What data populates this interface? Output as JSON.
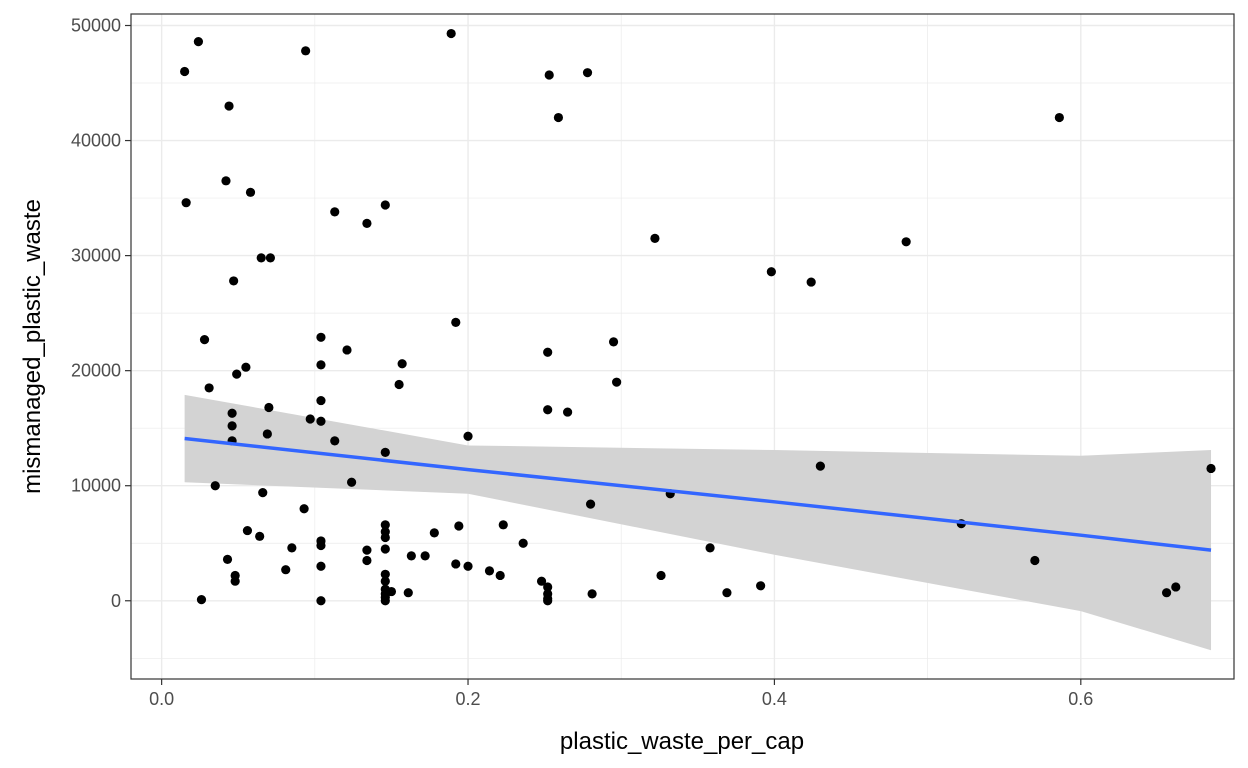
{
  "chart_data": {
    "type": "scatter",
    "title": "",
    "xlabel": "plastic_waste_per_cap",
    "ylabel": "mismanaged_plastic_waste",
    "xlim": [
      -0.02,
      0.7
    ],
    "ylim": [
      -6800,
      51000
    ],
    "x_ticks": [
      0.0,
      0.2,
      0.4,
      0.6
    ],
    "x_tick_labels": [
      "0.0",
      "0.2",
      "0.4",
      "0.6"
    ],
    "y_ticks": [
      0,
      10000,
      20000,
      30000,
      40000,
      50000
    ],
    "y_tick_labels": [
      "0",
      "10000",
      "20000",
      "30000",
      "40000",
      "50000"
    ],
    "grid": true,
    "theme": "bw",
    "colors": {
      "points": "#000000",
      "fit_line": "#3366ff",
      "ribbon": "#d3d3d3",
      "grid": "#ebebeb",
      "panel_border": "#333333"
    },
    "points": [
      {
        "x": 0.015,
        "y": 46000
      },
      {
        "x": 0.024,
        "y": 48600
      },
      {
        "x": 0.044,
        "y": 43000
      },
      {
        "x": 0.094,
        "y": 47800
      },
      {
        "x": 0.189,
        "y": 49300
      },
      {
        "x": 0.253,
        "y": 45700
      },
      {
        "x": 0.278,
        "y": 45900
      },
      {
        "x": 0.259,
        "y": 42000
      },
      {
        "x": 0.586,
        "y": 42000
      },
      {
        "x": 0.016,
        "y": 34600
      },
      {
        "x": 0.042,
        "y": 36500
      },
      {
        "x": 0.058,
        "y": 35500
      },
      {
        "x": 0.113,
        "y": 33800
      },
      {
        "x": 0.134,
        "y": 32800
      },
      {
        "x": 0.146,
        "y": 34400
      },
      {
        "x": 0.322,
        "y": 31500
      },
      {
        "x": 0.486,
        "y": 31200
      },
      {
        "x": 0.065,
        "y": 29800
      },
      {
        "x": 0.071,
        "y": 29800
      },
      {
        "x": 0.398,
        "y": 28600
      },
      {
        "x": 0.424,
        "y": 27700
      },
      {
        "x": 0.047,
        "y": 27800
      },
      {
        "x": 0.192,
        "y": 24200
      },
      {
        "x": 0.028,
        "y": 22700
      },
      {
        "x": 0.104,
        "y": 22900
      },
      {
        "x": 0.121,
        "y": 21800
      },
      {
        "x": 0.295,
        "y": 22500
      },
      {
        "x": 0.252,
        "y": 21600
      },
      {
        "x": 0.104,
        "y": 20500
      },
      {
        "x": 0.157,
        "y": 20600
      },
      {
        "x": 0.055,
        "y": 20300
      },
      {
        "x": 0.049,
        "y": 19700
      },
      {
        "x": 0.031,
        "y": 18500
      },
      {
        "x": 0.155,
        "y": 18800
      },
      {
        "x": 0.297,
        "y": 19000
      },
      {
        "x": 0.104,
        "y": 17400
      },
      {
        "x": 0.07,
        "y": 16800
      },
      {
        "x": 0.046,
        "y": 16300
      },
      {
        "x": 0.252,
        "y": 16600
      },
      {
        "x": 0.265,
        "y": 16400
      },
      {
        "x": 0.097,
        "y": 15800
      },
      {
        "x": 0.104,
        "y": 15600
      },
      {
        "x": 0.046,
        "y": 15200
      },
      {
        "x": 0.069,
        "y": 14500
      },
      {
        "x": 0.046,
        "y": 13900
      },
      {
        "x": 0.113,
        "y": 13900
      },
      {
        "x": 0.2,
        "y": 14300
      },
      {
        "x": 0.146,
        "y": 12900
      },
      {
        "x": 0.43,
        "y": 11700
      },
      {
        "x": 0.685,
        "y": 11500
      },
      {
        "x": 0.035,
        "y": 10000
      },
      {
        "x": 0.124,
        "y": 10300
      },
      {
        "x": 0.066,
        "y": 9400
      },
      {
        "x": 0.332,
        "y": 9300
      },
      {
        "x": 0.28,
        "y": 8400
      },
      {
        "x": 0.093,
        "y": 8000
      },
      {
        "x": 0.522,
        "y": 6700
      },
      {
        "x": 0.146,
        "y": 6600
      },
      {
        "x": 0.194,
        "y": 6500
      },
      {
        "x": 0.223,
        "y": 6600
      },
      {
        "x": 0.056,
        "y": 6100
      },
      {
        "x": 0.146,
        "y": 6000
      },
      {
        "x": 0.178,
        "y": 5900
      },
      {
        "x": 0.064,
        "y": 5600
      },
      {
        "x": 0.146,
        "y": 5500
      },
      {
        "x": 0.104,
        "y": 5200
      },
      {
        "x": 0.104,
        "y": 4800
      },
      {
        "x": 0.085,
        "y": 4600
      },
      {
        "x": 0.134,
        "y": 4400
      },
      {
        "x": 0.146,
        "y": 4500
      },
      {
        "x": 0.236,
        "y": 5000
      },
      {
        "x": 0.358,
        "y": 4600
      },
      {
        "x": 0.163,
        "y": 3900
      },
      {
        "x": 0.172,
        "y": 3900
      },
      {
        "x": 0.043,
        "y": 3600
      },
      {
        "x": 0.134,
        "y": 3500
      },
      {
        "x": 0.57,
        "y": 3500
      },
      {
        "x": 0.104,
        "y": 3000
      },
      {
        "x": 0.192,
        "y": 3200
      },
      {
        "x": 0.2,
        "y": 3000
      },
      {
        "x": 0.081,
        "y": 2700
      },
      {
        "x": 0.214,
        "y": 2600
      },
      {
        "x": 0.221,
        "y": 2200
      },
      {
        "x": 0.326,
        "y": 2200
      },
      {
        "x": 0.048,
        "y": 2200
      },
      {
        "x": 0.048,
        "y": 1700
      },
      {
        "x": 0.146,
        "y": 2300
      },
      {
        "x": 0.146,
        "y": 1700
      },
      {
        "x": 0.248,
        "y": 1700
      },
      {
        "x": 0.252,
        "y": 1200
      },
      {
        "x": 0.391,
        "y": 1300
      },
      {
        "x": 0.662,
        "y": 1200
      },
      {
        "x": 0.146,
        "y": 1000
      },
      {
        "x": 0.15,
        "y": 800
      },
      {
        "x": 0.161,
        "y": 700
      },
      {
        "x": 0.146,
        "y": 600
      },
      {
        "x": 0.252,
        "y": 600
      },
      {
        "x": 0.281,
        "y": 600
      },
      {
        "x": 0.369,
        "y": 700
      },
      {
        "x": 0.656,
        "y": 700
      },
      {
        "x": 0.146,
        "y": 300
      },
      {
        "x": 0.252,
        "y": 200
      },
      {
        "x": 0.026,
        "y": 100
      },
      {
        "x": 0.104,
        "y": 0
      },
      {
        "x": 0.146,
        "y": 0
      },
      {
        "x": 0.252,
        "y": 0
      }
    ],
    "fit": {
      "method": "lm",
      "x": [
        0.015,
        0.2,
        0.4,
        0.6,
        0.685
      ],
      "y": [
        14100,
        11400,
        8600,
        5700,
        4400
      ],
      "ymin": [
        10300,
        9300,
        4000,
        -900,
        -4300
      ],
      "ymax": [
        17900,
        13500,
        13100,
        12600,
        13100
      ]
    }
  }
}
